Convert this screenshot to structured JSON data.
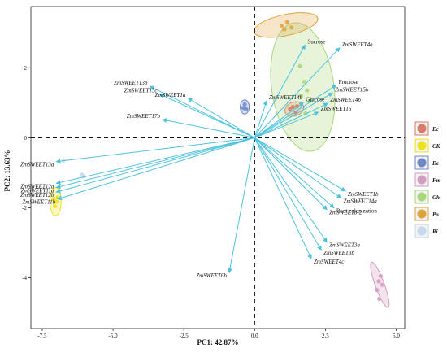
{
  "chart_data": {
    "type": "scatter",
    "subtype": "pca-biplot",
    "xlabel": "PC1: 42.87%",
    "ylabel": "PC2: 13.63%",
    "xlim": [
      -7.9,
      5.3
    ],
    "ylim": [
      -5.45,
      3.75
    ],
    "xticks": [
      {
        "value": -7.5,
        "label": "-7.5"
      },
      {
        "value": -5.0,
        "label": "-5.0"
      },
      {
        "value": -2.5,
        "label": "-2.5"
      },
      {
        "value": 0.0,
        "label": "0.0"
      },
      {
        "value": 2.5,
        "label": "2.5"
      },
      {
        "value": 5.0,
        "label": "5.0"
      }
    ],
    "yticks": [
      {
        "value": 2,
        "label": "2"
      },
      {
        "value": 0,
        "label": "0"
      },
      {
        "value": -2,
        "label": "-2"
      },
      {
        "value": -4,
        "label": "-4"
      }
    ],
    "grid": false,
    "reference_lines": {
      "x": 0,
      "y": 0,
      "style": "dashed"
    },
    "arrow_color": "#4fc3dd",
    "loadings": [
      {
        "label": "ZmSWEET13b",
        "x": -3.7,
        "y": 1.47,
        "italic": true
      },
      {
        "label": "ZmSWEET13c",
        "x": -3.35,
        "y": 1.25,
        "italic": true
      },
      {
        "label": "ZmSWEET1a",
        "x": -2.35,
        "y": 1.13,
        "italic": true
      },
      {
        "label": "ZmSWEET17b",
        "x": -3.25,
        "y": 0.52,
        "italic": true
      },
      {
        "label": "ZmSWEET14b",
        "x": 0.42,
        "y": 1.05,
        "italic": true
      },
      {
        "label": "Sucrose",
        "x": 1.78,
        "y": 2.65,
        "italic": false
      },
      {
        "label": "ZmSWEET4a",
        "x": 3.0,
        "y": 2.57,
        "italic": true
      },
      {
        "label": "Fructose",
        "x": 2.88,
        "y": 1.5,
        "italic": false
      },
      {
        "label": "ZmSWEET15b",
        "x": 2.75,
        "y": 1.28,
        "italic": true
      },
      {
        "label": "Glucose",
        "x": 1.72,
        "y": 1.0,
        "italic": false
      },
      {
        "label": "ZmSWEET4b",
        "x": 2.58,
        "y": 0.98,
        "italic": true
      },
      {
        "label": "ZmSWEET16",
        "x": 2.25,
        "y": 0.73,
        "italic": true
      },
      {
        "label": "ZmSWEET13a",
        "x": -7.0,
        "y": -0.68,
        "italic": true
      },
      {
        "label": "ZmSWEET12a",
        "x": -7.0,
        "y": -1.3,
        "italic": true
      },
      {
        "label": "ZmSWEET11a",
        "x": -7.0,
        "y": -1.42,
        "italic": true
      },
      {
        "label": "ZmSWEET12b",
        "x": -7.0,
        "y": -1.55,
        "italic": true
      },
      {
        "label": "ZmSWEET11b",
        "x": -6.95,
        "y": -1.75,
        "italic": true
      },
      {
        "label": "ZmSWEET1b",
        "x": 3.2,
        "y": -1.52,
        "italic": true
      },
      {
        "label": "ZmSWEET14a",
        "x": 3.05,
        "y": -1.72,
        "italic": true
      },
      {
        "label": "Root colonization",
        "x": 2.8,
        "y": -2.0,
        "italic": false
      },
      {
        "label": "ZmSWEETb-2",
        "x": 2.55,
        "y": -2.05,
        "italic": true
      },
      {
        "label": "ZmSWEET3a",
        "x": 2.55,
        "y": -2.98,
        "italic": true
      },
      {
        "label": "ZmSWEET3b",
        "x": 2.35,
        "y": -3.2,
        "italic": true
      },
      {
        "label": "ZmSWEET4c",
        "x": 2.0,
        "y": -3.45,
        "italic": true
      },
      {
        "label": "ZmSWEET6b",
        "x": -0.9,
        "y": -3.85,
        "italic": true
      }
    ],
    "groups": [
      {
        "name": "Ec",
        "color": "#d97a6a",
        "points": [
          [
            1.35,
            0.88
          ],
          [
            1.5,
            0.9
          ],
          [
            1.45,
            0.72
          ],
          [
            1.25,
            0.82
          ]
        ],
        "ellipse": {
          "cx": 1.4,
          "cy": 0.82,
          "rx": 0.34,
          "ry": 0.2,
          "angle": 20
        }
      },
      {
        "name": "CK",
        "color": "#ece21c",
        "points": [
          [
            -7.1,
            -1.75
          ],
          [
            -7.0,
            -1.82
          ],
          [
            -7.05,
            -1.95
          ],
          [
            -6.95,
            -1.7
          ]
        ],
        "ellipse": {
          "cx": -7.03,
          "cy": -1.82,
          "rx": 0.2,
          "ry": 0.4,
          "angle": 0
        }
      },
      {
        "name": "De",
        "color": "#6f87c9",
        "points": [
          [
            -0.4,
            0.85
          ],
          [
            -0.35,
            0.95
          ],
          [
            -0.3,
            0.82
          ]
        ],
        "ellipse": {
          "cx": -0.35,
          "cy": 0.88,
          "rx": 0.16,
          "ry": 0.2,
          "angle": 0
        }
      },
      {
        "name": "Fm",
        "color": "#d49bc0",
        "points": [
          [
            4.45,
            -3.95
          ],
          [
            4.38,
            -4.1
          ],
          [
            4.5,
            -4.2
          ],
          [
            4.32,
            -4.35
          ],
          [
            4.4,
            -4.6
          ]
        ],
        "ellipse": {
          "cx": 4.42,
          "cy": -4.2,
          "rx": 0.85,
          "ry": 0.13,
          "angle": -70
        }
      },
      {
        "name": "Gh",
        "color": "#a8d77a",
        "points": [
          [
            1.6,
            2.05
          ],
          [
            1.75,
            1.6
          ],
          [
            1.85,
            1.35
          ],
          [
            1.65,
            1.2
          ],
          [
            1.95,
            1.05
          ],
          [
            1.8,
            0.7
          ]
        ],
        "ellipse": {
          "cx": 1.7,
          "cy": 1.45,
          "rx": 1.1,
          "ry": 1.85,
          "angle": 8
        }
      },
      {
        "name": "Po",
        "color": "#e0a13a",
        "points": [
          [
            1.05,
            3.1
          ],
          [
            1.3,
            3.15
          ],
          [
            1.15,
            3.3
          ],
          [
            0.95,
            3.2
          ]
        ],
        "ellipse": {
          "cx": 1.1,
          "cy": 3.22,
          "rx": 1.15,
          "ry": 0.3,
          "angle": 12
        }
      },
      {
        "name": "Ri",
        "color": "#c7d9ec",
        "points": [
          [
            -6.1,
            -1.05
          ],
          [
            -6.05,
            -1.1
          ],
          [
            -6.75,
            -0.65
          ]
        ],
        "ellipse": null
      }
    ],
    "legend": {
      "placement": "right",
      "entries": [
        "Ec",
        "CK",
        "De",
        "Fm",
        "Gh",
        "Po",
        "Ri"
      ]
    }
  }
}
